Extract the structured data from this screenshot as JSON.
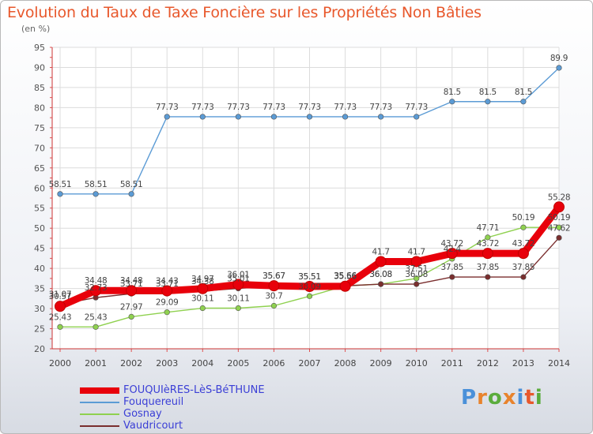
{
  "header": {
    "title": "Evolution du Taux de Taxe Foncière sur les Propriétés Non Bâties",
    "unit": "(en %)"
  },
  "logo": {
    "text": "Proxiti",
    "colors": [
      "#4a90d9",
      "#e8832c",
      "#5aac3c",
      "#e8832c",
      "#4a90d9",
      "#e8582c",
      "#5aac3c"
    ]
  },
  "chart_data": {
    "type": "line",
    "title": "Evolution du Taux de Taxe Foncière sur les Propriétés Non Bâties",
    "ylabel": "(en %)",
    "xlabel": "",
    "x": [
      "2000",
      "2001",
      "2002",
      "2003",
      "2004",
      "2005",
      "2006",
      "2007",
      "2008",
      "2009",
      "2010",
      "2011",
      "2012",
      "2013",
      "2014"
    ],
    "ylim": [
      20,
      95
    ],
    "yticks": [
      20,
      25,
      30,
      35,
      40,
      45,
      50,
      55,
      60,
      65,
      70,
      75,
      80,
      85,
      90,
      95
    ],
    "grid": true,
    "legend": "bottom",
    "series": [
      {
        "name": "FOUQUIèRES-LèS-BéTHUNE",
        "color": "#e8000b",
        "bold": true,
        "values": [
          30.57,
          34.48,
          34.48,
          34.43,
          34.97,
          36.01,
          35.67,
          35.51,
          35.56,
          41.7,
          41.7,
          43.72,
          43.72,
          43.72,
          55.28
        ],
        "labels": [
          "30.57",
          "34.48",
          "34.48",
          "34.43",
          "34.97",
          "36.01",
          "35.67",
          "35.51",
          "35.56",
          "41.7",
          "41.7",
          "43.72",
          "43.72",
          "43.72",
          "55.28"
        ]
      },
      {
        "name": "Fouquereuil",
        "color": "#5b9bd5",
        "values": [
          58.51,
          58.51,
          58.51,
          77.73,
          77.73,
          77.73,
          77.73,
          77.73,
          77.73,
          77.73,
          77.73,
          81.5,
          81.5,
          81.5,
          89.9
        ],
        "labels": [
          "58.51",
          "58.51",
          "58.51",
          "77.73",
          "77.73",
          "77.73",
          "77.73",
          "77.73",
          "77.73",
          "77.73",
          "77.73",
          "81.5",
          "81.5",
          "81.5",
          "89.9"
        ]
      },
      {
        "name": "Gosnay",
        "color": "#8fd14f",
        "values": [
          25.43,
          25.43,
          27.97,
          29.09,
          30.11,
          30.11,
          30.7,
          33.09,
          35.66,
          36.08,
          37.51,
          42.4,
          47.71,
          50.19,
          50.19
        ],
        "labels": [
          "25.43",
          "25.43",
          "27.97",
          "29.09",
          "30.11",
          "30.11",
          "30.7",
          "33.09",
          "35.66",
          "36.08",
          "37.51",
          "42.4",
          "47.71",
          "50.19",
          "50.19"
        ]
      },
      {
        "name": "Vaudricourt",
        "color": "#7a2e2e",
        "values": [
          31.07,
          32.73,
          33.71,
          33.71,
          34.38,
          35.01,
          35.67,
          35.51,
          35.66,
          36.08,
          36.08,
          37.85,
          37.85,
          37.85,
          47.62
        ],
        "labels": [
          "31.07",
          "32.73",
          "33.71",
          "33.71",
          "34.38",
          "35.01",
          "35.67",
          "35.51",
          "35.66",
          "36.08",
          "36.08",
          "37.85",
          "37.85",
          "37.85",
          "47.62"
        ]
      }
    ]
  }
}
